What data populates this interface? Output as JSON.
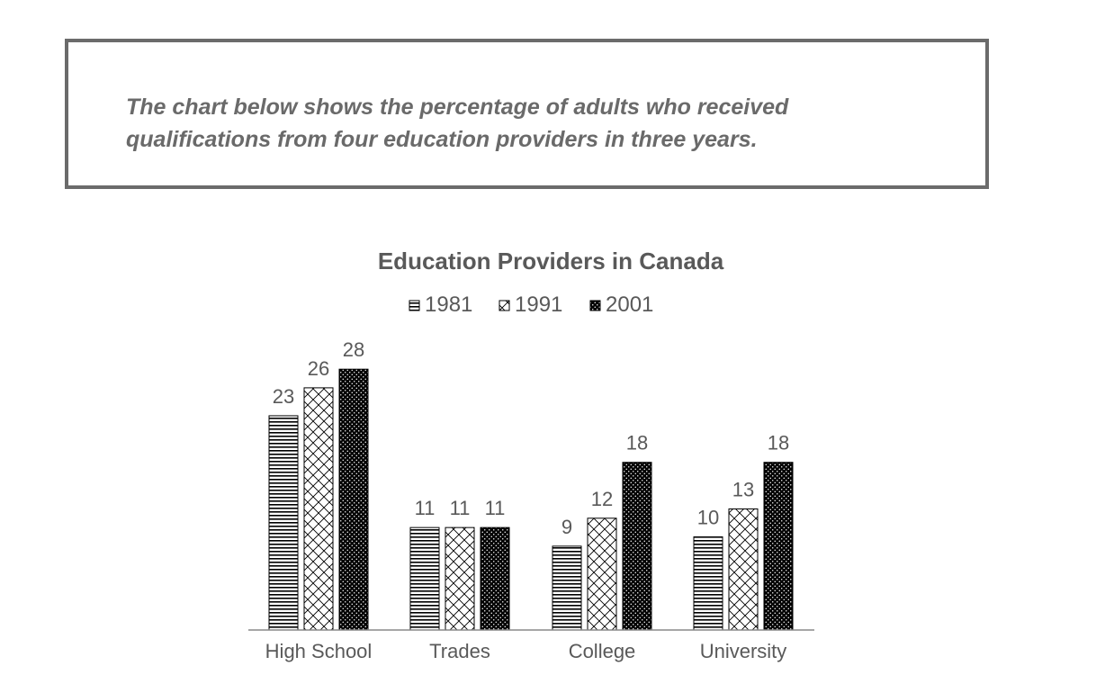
{
  "intro_text": "The chart below shows the percentage of adults who received qualifications from four education providers in three years.",
  "chart_data": {
    "type": "bar",
    "title": "Education Providers in Canada",
    "categories": [
      "High School",
      "Trades",
      "College",
      "University"
    ],
    "series": [
      {
        "name": "1981",
        "values": [
          23,
          11,
          9,
          10
        ]
      },
      {
        "name": "1991",
        "values": [
          26,
          11,
          12,
          13
        ]
      },
      {
        "name": "2001",
        "values": [
          28,
          11,
          18,
          18
        ]
      }
    ],
    "xlabel": "",
    "ylabel": "",
    "ylim": [
      0,
      30
    ],
    "grid": false,
    "legend_position": "top",
    "data_labels": true,
    "series_patterns": [
      "horizontal-lines",
      "diagonal-crosshatch",
      "dotted-black"
    ]
  },
  "colors": {
    "text": "#595959",
    "axis": "#888888",
    "bar_outline": "#000000",
    "box_border": "#6b6b6b"
  }
}
